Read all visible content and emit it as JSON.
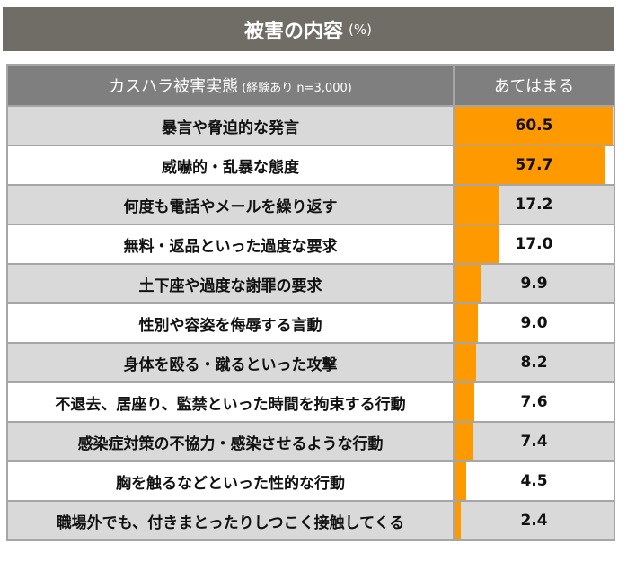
{
  "chart_data": {
    "type": "table",
    "title": "被害の内容",
    "unit": "(%)",
    "header_label": "カスハラ被害実態",
    "header_sub": "(経験あり n=3,000)",
    "header_value": "あてはまる",
    "bar_color": "#ff9900",
    "xlim": [
      0,
      61
    ],
    "rows": [
      {
        "label": "暴言や脅迫的な発言",
        "value": 60.5,
        "text": "60.5"
      },
      {
        "label": "威嚇的・乱暴な態度",
        "value": 57.7,
        "text": "57.7"
      },
      {
        "label": "何度も電話やメールを繰り返す",
        "value": 17.2,
        "text": "17.2"
      },
      {
        "label": "無料・返品といった過度な要求",
        "value": 17.0,
        "text": "17.0"
      },
      {
        "label": "土下座や過度な謝罪の要求",
        "value": 9.9,
        "text": "9.9"
      },
      {
        "label": "性別や容姿を侮辱する言動",
        "value": 9.0,
        "text": "9.0"
      },
      {
        "label": "身体を殴る・蹴るといった攻撃",
        "value": 8.2,
        "text": "8.2"
      },
      {
        "label": "不退去、居座り、監禁といった時間を拘束する行動",
        "value": 7.6,
        "text": "7.6"
      },
      {
        "label": "感染症対策の不協力・感染させるような行動",
        "value": 7.4,
        "text": "7.4"
      },
      {
        "label": "胸を触るなどといった性的な行動",
        "value": 4.5,
        "text": "4.5"
      },
      {
        "label": "職場外でも、付きまとったりしつこく接触してくる",
        "value": 2.4,
        "text": "2.4"
      }
    ]
  }
}
